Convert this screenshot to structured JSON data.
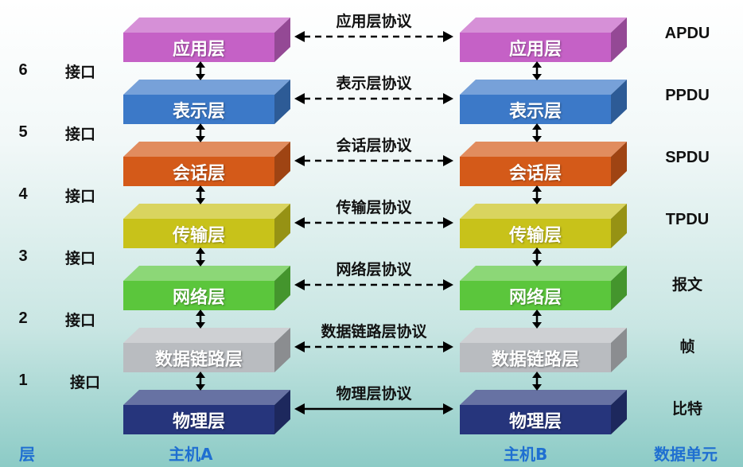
{
  "colors": {
    "application": "#c561c6",
    "presentation": "#3c79c8",
    "session": "#d45a19",
    "transport": "#c8c21a",
    "network": "#5bc63c",
    "datalink": "#b9bcc0",
    "physical": "#26357c",
    "footer_text": "#1f6fd1"
  },
  "layers": [
    {
      "key": "application",
      "name": "应用层",
      "protocol": "应用层协议",
      "pdu": "APDU",
      "line": "dashed"
    },
    {
      "key": "presentation",
      "name": "表示层",
      "protocol": "表示层协议",
      "pdu": "PPDU",
      "line": "dashed"
    },
    {
      "key": "session",
      "name": "会话层",
      "protocol": "会话层协议",
      "pdu": "SPDU",
      "line": "dashed"
    },
    {
      "key": "transport",
      "name": "传输层",
      "protocol": "传输层协议",
      "pdu": "TPDU",
      "line": "dashed"
    },
    {
      "key": "network",
      "name": "网络层",
      "protocol": "网络层协议",
      "pdu": "报文",
      "line": "dashed"
    },
    {
      "key": "datalink",
      "name": "数据链路层",
      "protocol": "数据链路层协议",
      "pdu": "帧",
      "line": "dashed"
    },
    {
      "key": "physical",
      "name": "物理层",
      "protocol": "物理层协议",
      "pdu": "比特",
      "line": "solid"
    }
  ],
  "interfaces": [
    {
      "number": "6",
      "label": "接口"
    },
    {
      "number": "5",
      "label": "接口"
    },
    {
      "number": "4",
      "label": "接口"
    },
    {
      "number": "3",
      "label": "接口"
    },
    {
      "number": "2",
      "label": "接口"
    },
    {
      "number": "1",
      "label": "接口"
    }
  ],
  "footer": {
    "layer": "层",
    "host_a": "主机A",
    "host_b": "主机B",
    "data_unit": "数据单元"
  }
}
